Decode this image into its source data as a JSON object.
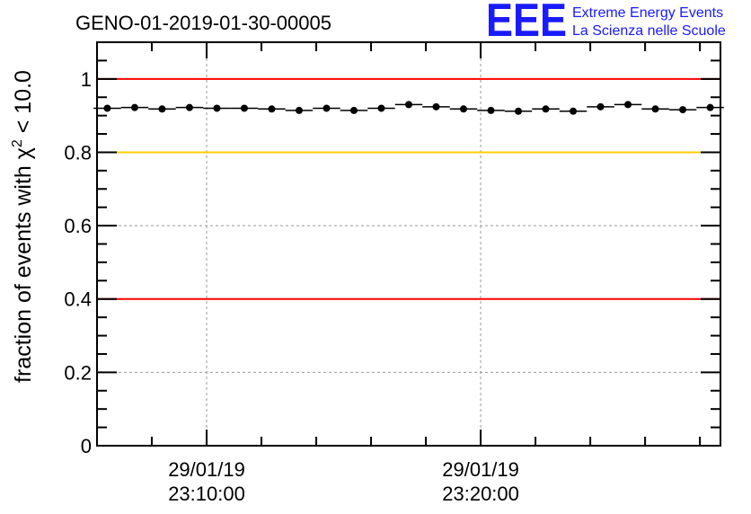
{
  "chart_data": {
    "type": "scatter",
    "title": "GENO-01-2019-01-30-00005",
    "ylabel_main": "fraction of events with χ",
    "ylabel_sup": "2",
    "ylabel_tail": " < 10.0",
    "ylim": [
      0,
      1.1
    ],
    "yticks": [
      {
        "value": 0,
        "label": "0"
      },
      {
        "value": 0.2,
        "label": "0.2"
      },
      {
        "value": 0.4,
        "label": "0.4"
      },
      {
        "value": 0.6,
        "label": "0.6"
      },
      {
        "value": 0.8,
        "label": "0.8"
      },
      {
        "value": 1.0,
        "label": "1"
      }
    ],
    "xlim": [
      0,
      22.75
    ],
    "xticks": [
      {
        "value": 4,
        "label_date": "29/01/19",
        "label_time": "23:10:00"
      },
      {
        "value": 14,
        "label_date": "29/01/19",
        "label_time": "23:20:00"
      }
    ],
    "grid": true,
    "reference_lines": [
      {
        "y": 1.0,
        "color": "#ff0000"
      },
      {
        "y": 0.8,
        "color": "#ffcc00"
      },
      {
        "y": 0.4,
        "color": "#ff0000"
      }
    ],
    "series": [
      {
        "x": [
          0.375,
          1.375,
          2.375,
          3.375,
          4.375,
          5.375,
          6.375,
          7.375,
          8.375,
          9.375,
          10.375,
          11.375,
          12.375,
          13.375,
          14.375,
          15.375,
          16.375,
          17.375,
          18.375,
          19.375,
          20.375,
          21.375,
          22.375
        ],
        "y": [
          0.92,
          0.922,
          0.918,
          0.922,
          0.92,
          0.92,
          0.918,
          0.914,
          0.92,
          0.914,
          0.92,
          0.93,
          0.924,
          0.918,
          0.914,
          0.912,
          0.918,
          0.912,
          0.924,
          0.93,
          0.918,
          0.916,
          0.922
        ],
        "color": "#000000"
      }
    ]
  },
  "logo": {
    "letters": "EEE",
    "line1": "Extreme Energy Events",
    "line2": "La Scienza nelle Scuole"
  }
}
